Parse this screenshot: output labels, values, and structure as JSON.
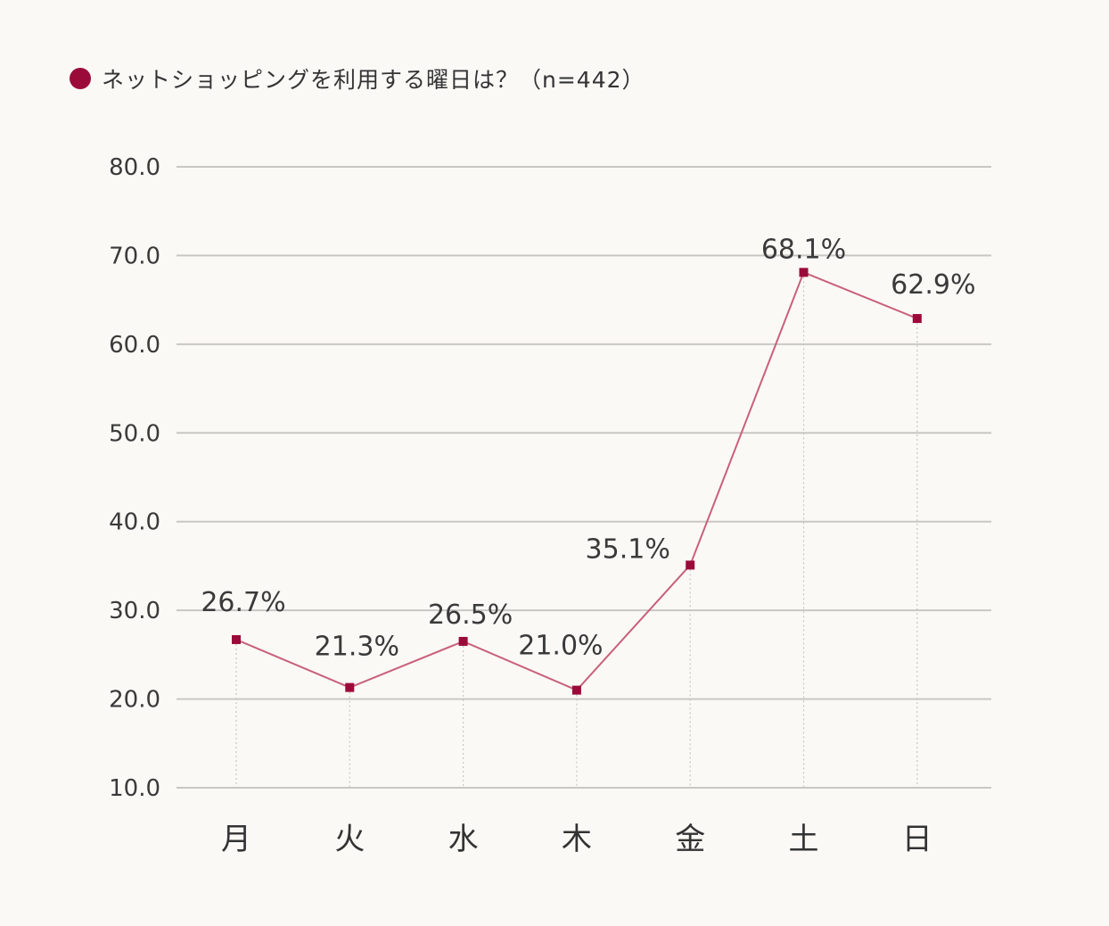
{
  "title": "ネットショッピングを利用する曜日は？（n=442）",
  "colors": {
    "accent": "#9b0b3a",
    "line": "#c9607a",
    "grid": "#c9c7c4",
    "background": "#faf9f6"
  },
  "chart_data": {
    "type": "line",
    "title": "ネットショッピングを利用する曜日は？（n=442）",
    "xlabel": "",
    "ylabel": "",
    "categories": [
      "月",
      "火",
      "水",
      "木",
      "金",
      "土",
      "日"
    ],
    "series": [
      {
        "values": [
          26.7,
          21.3,
          26.5,
          21.0,
          35.1,
          68.1,
          62.9
        ]
      }
    ],
    "data_labels": [
      "26.7%",
      "21.3%",
      "26.5%",
      "21.0%",
      "35.1%",
      "68.1%",
      "62.9%"
    ],
    "y_ticks": [
      "10.0",
      "20.0",
      "30.0",
      "40.0",
      "50.0",
      "60.0",
      "70.0",
      "80.0"
    ],
    "ylim": [
      10,
      80
    ],
    "grid": true,
    "legend": "none"
  }
}
